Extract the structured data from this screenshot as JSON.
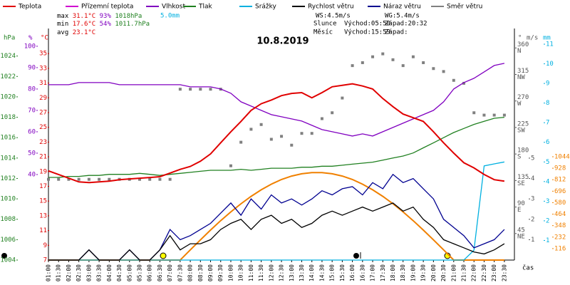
{
  "chart_data": {
    "type": "line",
    "title": "10.8.2019",
    "xlabel": "čas",
    "categories": [
      "01:00",
      "01:30",
      "02:00",
      "02:30",
      "03:00",
      "03:30",
      "04:00",
      "04:30",
      "05:00",
      "05:30",
      "06:00",
      "06:30",
      "07:00",
      "07:30",
      "08:00",
      "08:30",
      "09:00",
      "09:30",
      "10:00",
      "10:30",
      "11:00",
      "11:30",
      "12:00",
      "12:30",
      "13:00",
      "13:30",
      "14:00",
      "14:30",
      "15:00",
      "15:30",
      "16:00",
      "16:30",
      "17:00",
      "17:30",
      "18:00",
      "18:30",
      "19:00",
      "19:30",
      "20:00",
      "20:30",
      "21:00",
      "21:30",
      "22:00",
      "22:30",
      "23:00",
      "23:30"
    ],
    "ylabel": "°C",
    "ylim": [
      7,
      38.4
    ],
    "yticks": [
      7,
      9,
      11,
      13,
      15,
      17,
      19,
      21,
      23,
      25,
      27,
      29,
      31,
      33,
      35
    ],
    "y2label": "%",
    "y2lim": [
      0,
      108.3
    ],
    "y2ticks": [
      40,
      50,
      60,
      70,
      80,
      90,
      100
    ],
    "y3label": "hPa",
    "y3lim": [
      1004,
      1026.7
    ],
    "y3ticks": [
      1004,
      1006,
      1008,
      1010,
      1012,
      1014,
      1016,
      1018,
      1020,
      1022,
      1024
    ],
    "y4label": "°",
    "y4lim": [
      0,
      393
    ],
    "y4ticks": [
      45,
      90,
      135,
      180,
      225,
      270,
      315,
      360
    ],
    "y4tick_names": [
      "NE",
      "E",
      "SE",
      "S",
      "SW",
      "W",
      "NW",
      "N"
    ],
    "y5label": "m/s",
    "y5lim": [
      0,
      11.36
    ],
    "y5ticks": [
      1,
      2,
      3,
      4,
      5
    ],
    "y6label": "mm",
    "y6lim": [
      0,
      11.8
    ],
    "y6ticks": [
      1,
      2,
      3,
      4,
      5,
      6,
      7,
      8,
      9,
      10,
      11
    ],
    "y7lim": [
      0,
      2340
    ],
    "y7ticks": [
      116,
      232,
      348,
      464,
      580,
      696,
      812,
      928,
      1044
    ],
    "grid": false,
    "series": [
      {
        "name": "Teplota",
        "color": "#e00000",
        "axis": "y",
        "values": [
          19.1,
          18.6,
          18.1,
          17.6,
          17.5,
          17.6,
          17.7,
          17.9,
          18,
          18.1,
          18.2,
          18.3,
          18.8,
          19.3,
          19.7,
          20.4,
          21.4,
          22.9,
          24.4,
          25.8,
          27.3,
          28.2,
          28.7,
          29.3,
          29.6,
          29.7,
          29,
          29.7,
          30.5,
          30.7,
          30.9,
          30.6,
          30.2,
          28.9,
          27.8,
          26.8,
          26.3,
          25.8,
          24.4,
          22.9,
          21.5,
          20.2,
          19.5,
          18.6,
          17.9,
          17.7
        ]
      },
      {
        "name": "Přízemní teplota",
        "color": "#d000d0",
        "axis": "y",
        "values": [
          null,
          null,
          null,
          null,
          null,
          null,
          null,
          null,
          null,
          null,
          null,
          null,
          null,
          null,
          null,
          null,
          null,
          null,
          null,
          null,
          null,
          null,
          null,
          null,
          null,
          null,
          null,
          null,
          null,
          null,
          null,
          null,
          null,
          null,
          null,
          null,
          null,
          null,
          null,
          null,
          null,
          null,
          null,
          null,
          null,
          null
        ]
      },
      {
        "name": "Vlhkost",
        "color": "#8000c0",
        "axis": "y2",
        "values": [
          82,
          82,
          82,
          83,
          83,
          83,
          83,
          82,
          82,
          82,
          82,
          82,
          82,
          82,
          81,
          81,
          81,
          80,
          78,
          74,
          72,
          70,
          68,
          67,
          66,
          65,
          63,
          61,
          60,
          59,
          58,
          59,
          58,
          60,
          62,
          64,
          66,
          68,
          70,
          74,
          80,
          83,
          85,
          88,
          91,
          92
        ]
      },
      {
        "name": "Tlak",
        "color": "#208020",
        "axis": "y3",
        "values": [
          1012.1,
          1012.1,
          1012.2,
          1012.2,
          1012.3,
          1012.3,
          1012.4,
          1012.4,
          1012.4,
          1012.5,
          1012.4,
          1012.3,
          1012.4,
          1012.5,
          1012.6,
          1012.7,
          1012.8,
          1012.8,
          1012.8,
          1012.9,
          1012.8,
          1012.9,
          1013,
          1013,
          1013,
          1013.1,
          1013.1,
          1013.2,
          1013.2,
          1013.3,
          1013.4,
          1013.5,
          1013.6,
          1013.8,
          1014,
          1014.2,
          1014.5,
          1015,
          1015.5,
          1016,
          1016.5,
          1016.9,
          1017.3,
          1017.6,
          1017.9,
          1018
        ]
      },
      {
        "name": "Srážky",
        "color": "#00b0e0",
        "axis": "y6",
        "values": [
          0,
          0,
          0,
          0,
          0,
          0,
          0,
          0,
          0,
          0,
          0,
          0,
          0,
          0,
          0,
          0,
          0,
          0,
          0,
          0,
          0,
          0,
          0,
          0,
          0,
          0,
          0,
          0,
          0,
          0,
          0,
          0,
          0,
          0,
          0,
          0,
          0,
          0,
          0,
          0,
          0,
          0,
          0.5,
          4.8,
          4.9,
          5.0
        ]
      },
      {
        "name": "Rychlost větru",
        "color": "#000000",
        "axis": "y5",
        "values": [
          0,
          0,
          0,
          0,
          0.5,
          0,
          0,
          0,
          0.5,
          0,
          0,
          0.5,
          1.2,
          0.5,
          0.8,
          0.8,
          1.0,
          1.5,
          1.8,
          2.0,
          1.5,
          2.0,
          2.2,
          1.8,
          2.0,
          1.6,
          1.8,
          2.2,
          2.4,
          2.2,
          2.4,
          2.6,
          2.4,
          2.6,
          2.8,
          2.4,
          2.6,
          2.0,
          1.6,
          1.0,
          0.8,
          0.6,
          0.4,
          0.3,
          0.5,
          0.8
        ]
      },
      {
        "name": "Náraz větru",
        "color": "#000090",
        "axis": "y5",
        "values": [
          0,
          0,
          0,
          0,
          0.5,
          0,
          0,
          0,
          0.5,
          0,
          0,
          0.5,
          1.5,
          1.0,
          1.2,
          1.5,
          1.8,
          2.3,
          2.8,
          2.2,
          3.0,
          2.5,
          3.2,
          2.8,
          3.0,
          2.7,
          3.0,
          3.4,
          3.2,
          3.5,
          3.6,
          3.2,
          3.8,
          3.5,
          4.2,
          3.8,
          4.0,
          3.5,
          3.0,
          2.0,
          1.6,
          1.2,
          0.6,
          0.8,
          1.0,
          1.5
        ]
      },
      {
        "name": "Směr větru",
        "color": "#808080",
        "axis": "y4",
        "mode": "scatter",
        "values": [
          137,
          137,
          137,
          137,
          137,
          137,
          137,
          137,
          137,
          137,
          137,
          137,
          137,
          290,
          290,
          290,
          290,
          290,
          160,
          200,
          222,
          230,
          205,
          210,
          195,
          215,
          215,
          240,
          250,
          275,
          330,
          335,
          345,
          350,
          340,
          330,
          345,
          335,
          325,
          320,
          305,
          300,
          250,
          246,
          246,
          246
        ]
      },
      {
        "color": "#f08000",
        "axis": "y7",
        "values": [
          0,
          0,
          0,
          0,
          0,
          0,
          0,
          0,
          0,
          0,
          0,
          0,
          0,
          0,
          103,
          204,
          303,
          398,
          487,
          569,
          644,
          710,
          767,
          814,
          849,
          872,
          884,
          884,
          872,
          849,
          814,
          767,
          710,
          644,
          569,
          487,
          398,
          303,
          204,
          103,
          0,
          0,
          0,
          0,
          0,
          0
        ]
      }
    ],
    "stats": {
      "max": {
        "label": "max",
        "temp": "31.1°C",
        "hum": "93%",
        "press": "1018hPa",
        "rain": "5.0mm"
      },
      "min": {
        "label": "min",
        "temp": "17.6°C",
        "hum": "54%",
        "press": "1011.7hPa"
      },
      "avg": {
        "label": "avg",
        "temp": "23.1°C"
      },
      "ws": "WS:4.5m/s",
      "wg": "WG:5.4m/s",
      "sun": {
        "label": "Slunce",
        "rise": "Východ:05:50",
        "set": "Západ:20:32"
      },
      "moon": {
        "label": "Měsíc",
        "rise": "Východ:15:59",
        "set": "Západ:"
      }
    }
  }
}
